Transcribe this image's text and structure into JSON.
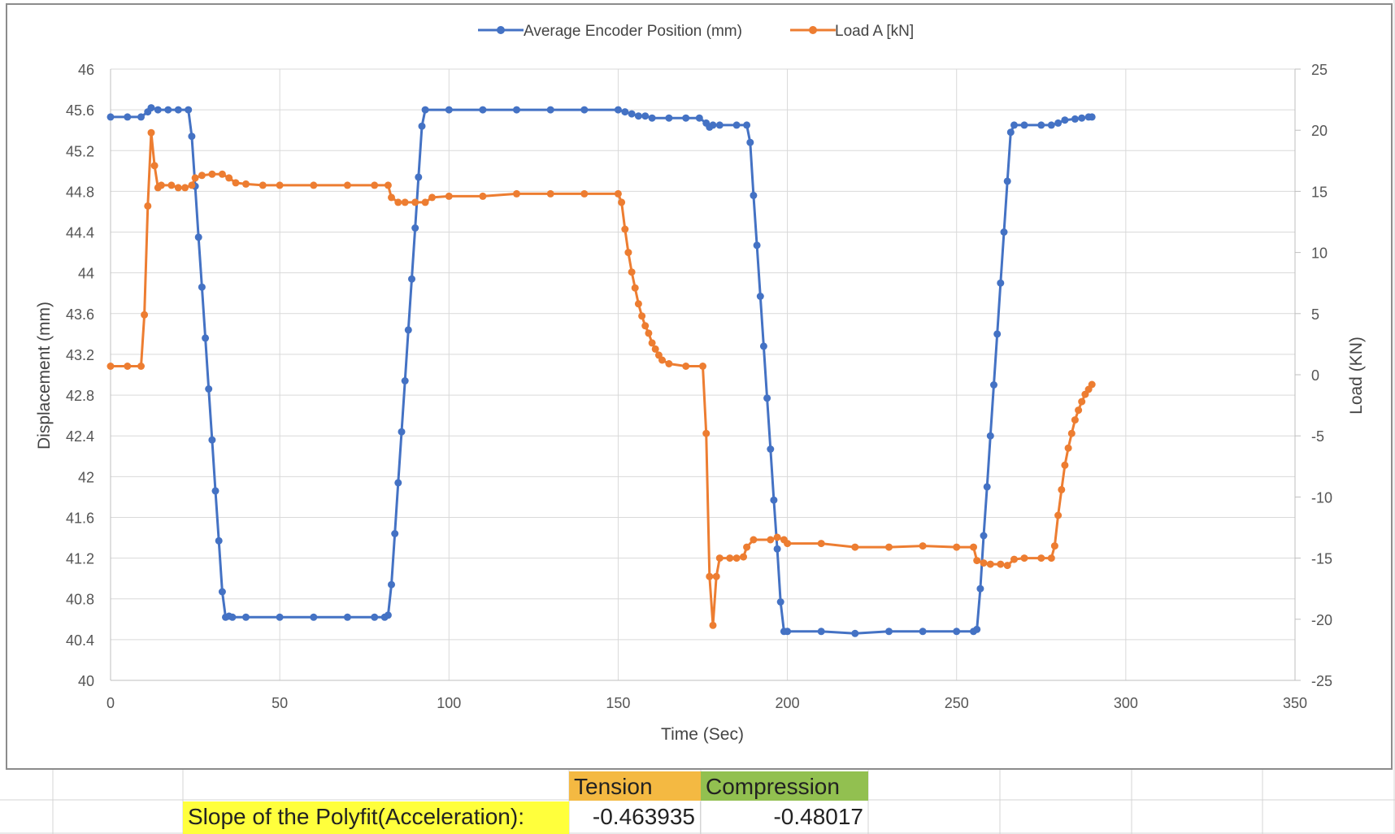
{
  "chart_data": {
    "type": "line",
    "title": "",
    "xlabel": "Time (Sec)",
    "ylabel": "Displacement (mm)",
    "y2label": "Load (KN)",
    "xlim": [
      0,
      350
    ],
    "ylim": [
      40,
      46
    ],
    "y2lim": [
      -25,
      25
    ],
    "x_ticks": [
      0,
      50,
      100,
      150,
      200,
      250,
      300,
      350
    ],
    "y_ticks": [
      "40",
      "40.4",
      "40.8",
      "41.2",
      "41.6",
      "42",
      "42.4",
      "42.8",
      "43.2",
      "43.6",
      "44",
      "44.4",
      "44.8",
      "45.2",
      "45.6",
      "46"
    ],
    "y2_ticks": [
      -25,
      -20,
      -15,
      -10,
      -5,
      0,
      5,
      10,
      15,
      20,
      25
    ],
    "grid": true,
    "legend_position": "top-center",
    "series": [
      {
        "name": "Average Encoder Position (mm)",
        "axis": "left",
        "color": "#4472C4",
        "points": [
          [
            0,
            45.53
          ],
          [
            5,
            45.53
          ],
          [
            9,
            45.53
          ],
          [
            11,
            45.58
          ],
          [
            12,
            45.62
          ],
          [
            14,
            45.6
          ],
          [
            17,
            45.6
          ],
          [
            20,
            45.6
          ],
          [
            23,
            45.6
          ],
          [
            24,
            45.34
          ],
          [
            25,
            44.85
          ],
          [
            26,
            44.35
          ],
          [
            27,
            43.86
          ],
          [
            28,
            43.36
          ],
          [
            29,
            42.86
          ],
          [
            30,
            42.36
          ],
          [
            31,
            41.86
          ],
          [
            32,
            41.37
          ],
          [
            33,
            40.87
          ],
          [
            34,
            40.62
          ],
          [
            35,
            40.63
          ],
          [
            36,
            40.62
          ],
          [
            40,
            40.62
          ],
          [
            50,
            40.62
          ],
          [
            60,
            40.62
          ],
          [
            70,
            40.62
          ],
          [
            78,
            40.62
          ],
          [
            81,
            40.62
          ],
          [
            82,
            40.64
          ],
          [
            83,
            40.94
          ],
          [
            84,
            41.44
          ],
          [
            85,
            41.94
          ],
          [
            86,
            42.44
          ],
          [
            87,
            42.94
          ],
          [
            88,
            43.44
          ],
          [
            89,
            43.94
          ],
          [
            90,
            44.44
          ],
          [
            91,
            44.94
          ],
          [
            92,
            45.44
          ],
          [
            93,
            45.6
          ],
          [
            100,
            45.6
          ],
          [
            110,
            45.6
          ],
          [
            120,
            45.6
          ],
          [
            130,
            45.6
          ],
          [
            140,
            45.6
          ],
          [
            150,
            45.6
          ],
          [
            152,
            45.58
          ],
          [
            154,
            45.56
          ],
          [
            156,
            45.54
          ],
          [
            158,
            45.54
          ],
          [
            160,
            45.52
          ],
          [
            165,
            45.52
          ],
          [
            170,
            45.52
          ],
          [
            174,
            45.52
          ],
          [
            176,
            45.47
          ],
          [
            177,
            45.43
          ],
          [
            178,
            45.45
          ],
          [
            180,
            45.45
          ],
          [
            185,
            45.45
          ],
          [
            188,
            45.45
          ],
          [
            189,
            45.28
          ],
          [
            190,
            44.76
          ],
          [
            191,
            44.27
          ],
          [
            192,
            43.77
          ],
          [
            193,
            43.28
          ],
          [
            194,
            42.77
          ],
          [
            195,
            42.27
          ],
          [
            196,
            41.77
          ],
          [
            197,
            41.29
          ],
          [
            198,
            40.77
          ],
          [
            199,
            40.48
          ],
          [
            200,
            40.48
          ],
          [
            210,
            40.48
          ],
          [
            220,
            40.46
          ],
          [
            230,
            40.48
          ],
          [
            240,
            40.48
          ],
          [
            250,
            40.48
          ],
          [
            255,
            40.48
          ],
          [
            256,
            40.5
          ],
          [
            257,
            40.9
          ],
          [
            258,
            41.42
          ],
          [
            259,
            41.9
          ],
          [
            260,
            42.4
          ],
          [
            261,
            42.9
          ],
          [
            262,
            43.4
          ],
          [
            263,
            43.9
          ],
          [
            264,
            44.4
          ],
          [
            265,
            44.9
          ],
          [
            266,
            45.38
          ],
          [
            267,
            45.45
          ],
          [
            270,
            45.45
          ],
          [
            275,
            45.45
          ],
          [
            278,
            45.45
          ],
          [
            280,
            45.47
          ],
          [
            282,
            45.5
          ],
          [
            285,
            45.51
          ],
          [
            287,
            45.52
          ],
          [
            289,
            45.53
          ],
          [
            290,
            45.53
          ]
        ]
      },
      {
        "name": "Load A [kN]",
        "axis": "right",
        "color": "#ED7D31",
        "points": [
          [
            0,
            0.7
          ],
          [
            5,
            0.7
          ],
          [
            9,
            0.7
          ],
          [
            10,
            4.9
          ],
          [
            11,
            13.8
          ],
          [
            12,
            19.8
          ],
          [
            13,
            17.1
          ],
          [
            14,
            15.3
          ],
          [
            15,
            15.5
          ],
          [
            18,
            15.5
          ],
          [
            20,
            15.3
          ],
          [
            22,
            15.3
          ],
          [
            24,
            15.5
          ],
          [
            25,
            16.1
          ],
          [
            27,
            16.3
          ],
          [
            30,
            16.4
          ],
          [
            33,
            16.4
          ],
          [
            35,
            16.1
          ],
          [
            37,
            15.7
          ],
          [
            40,
            15.6
          ],
          [
            45,
            15.5
          ],
          [
            50,
            15.5
          ],
          [
            60,
            15.5
          ],
          [
            70,
            15.5
          ],
          [
            78,
            15.5
          ],
          [
            82,
            15.5
          ],
          [
            83,
            14.5
          ],
          [
            85,
            14.1
          ],
          [
            87,
            14.1
          ],
          [
            90,
            14.1
          ],
          [
            93,
            14.1
          ],
          [
            95,
            14.5
          ],
          [
            100,
            14.6
          ],
          [
            110,
            14.6
          ],
          [
            120,
            14.8
          ],
          [
            130,
            14.8
          ],
          [
            140,
            14.8
          ],
          [
            150,
            14.8
          ],
          [
            151,
            14.1
          ],
          [
            152,
            11.9
          ],
          [
            153,
            10.0
          ],
          [
            154,
            8.4
          ],
          [
            155,
            7.1
          ],
          [
            156,
            5.8
          ],
          [
            157,
            4.8
          ],
          [
            158,
            4.0
          ],
          [
            159,
            3.4
          ],
          [
            160,
            2.6
          ],
          [
            161,
            2.1
          ],
          [
            162,
            1.6
          ],
          [
            163,
            1.2
          ],
          [
            165,
            0.9
          ],
          [
            170,
            0.7
          ],
          [
            175,
            0.7
          ],
          [
            176,
            -4.8
          ],
          [
            177,
            -16.5
          ],
          [
            178,
            -20.5
          ],
          [
            179,
            -16.5
          ],
          [
            180,
            -15.0
          ],
          [
            183,
            -15.0
          ],
          [
            185,
            -15.0
          ],
          [
            187,
            -14.9
          ],
          [
            188,
            -14.1
          ],
          [
            190,
            -13.5
          ],
          [
            195,
            -13.5
          ],
          [
            197,
            -13.3
          ],
          [
            199,
            -13.5
          ],
          [
            200,
            -13.8
          ],
          [
            210,
            -13.8
          ],
          [
            220,
            -14.1
          ],
          [
            230,
            -14.1
          ],
          [
            240,
            -14.0
          ],
          [
            250,
            -14.1
          ],
          [
            255,
            -14.1
          ],
          [
            256,
            -15.2
          ],
          [
            258,
            -15.4
          ],
          [
            260,
            -15.5
          ],
          [
            263,
            -15.5
          ],
          [
            265,
            -15.6
          ],
          [
            267,
            -15.1
          ],
          [
            270,
            -15.0
          ],
          [
            275,
            -15.0
          ],
          [
            278,
            -15.0
          ],
          [
            279,
            -14.0
          ],
          [
            280,
            -11.5
          ],
          [
            281,
            -9.4
          ],
          [
            282,
            -7.4
          ],
          [
            283,
            -6.0
          ],
          [
            284,
            -4.8
          ],
          [
            285,
            -3.7
          ],
          [
            286,
            -2.9
          ],
          [
            287,
            -2.2
          ],
          [
            288,
            -1.6
          ],
          [
            289,
            -1.2
          ],
          [
            290,
            -0.8
          ]
        ]
      }
    ]
  },
  "table": {
    "tension_label": "Tension",
    "compression_label": "Compression",
    "slope_label": "Slope of the Polyfit(Acceleration):",
    "tension_value": "-0.463935",
    "compression_value": "-0.48017",
    "tension_color": "#F4B942",
    "compression_color": "#92C050",
    "label_highlight": "#FFFF3C"
  }
}
